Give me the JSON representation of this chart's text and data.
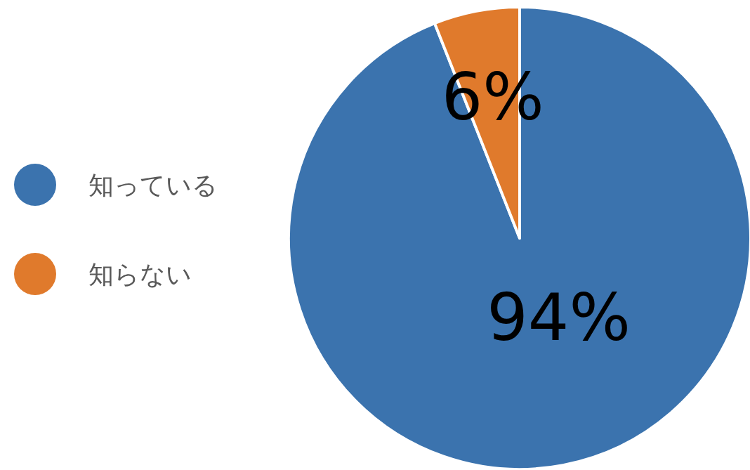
{
  "chart_data": {
    "type": "pie",
    "categories": [
      "知っている",
      "知らない"
    ],
    "values": [
      94,
      6
    ],
    "colors": [
      "#3b73ae",
      "#e07a2c"
    ],
    "value_labels": [
      "94%",
      "6%"
    ],
    "legend": "left"
  }
}
